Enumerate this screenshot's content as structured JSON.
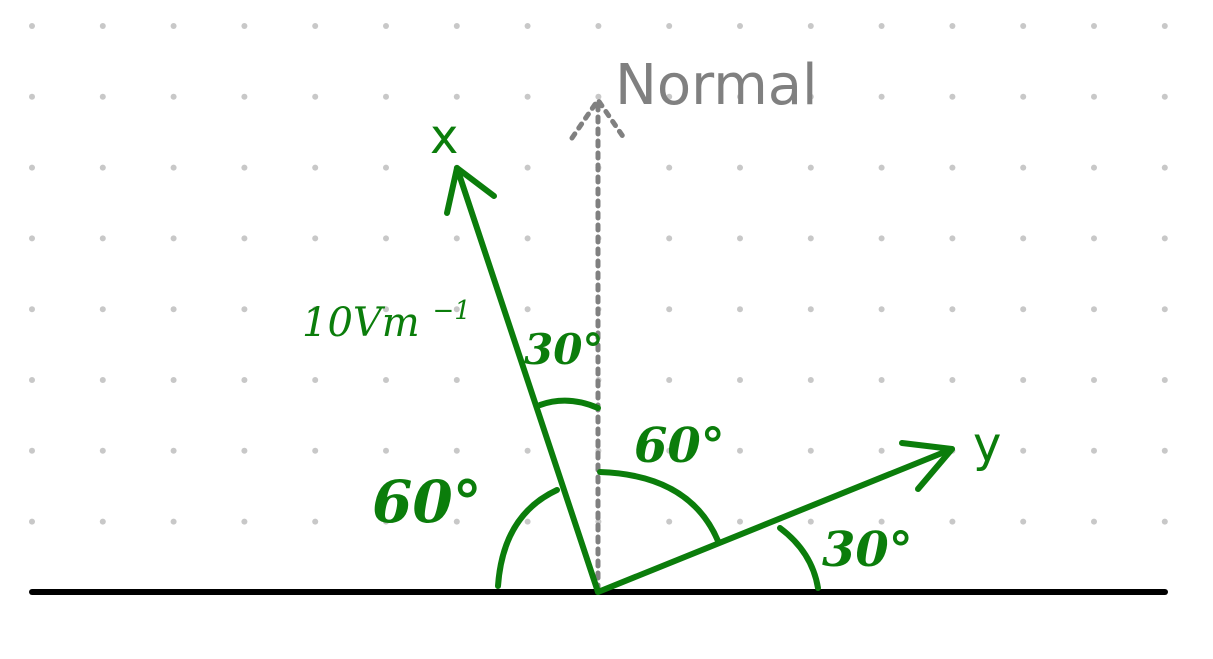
{
  "labels": {
    "normal": "Normal",
    "x_axis": "x",
    "y_axis": "y",
    "magnitude_main": "10Vm",
    "magnitude_sup": "−1"
  },
  "angles": {
    "x_to_normal": "30°",
    "normal_to_y": "60°",
    "y_to_surface": "30°",
    "surface_to_x": "60°"
  },
  "colors": {
    "vector": "#0b7d0b",
    "normal": "#808080",
    "surface": "#000000",
    "grid_dots": "#c8c8c8"
  }
}
